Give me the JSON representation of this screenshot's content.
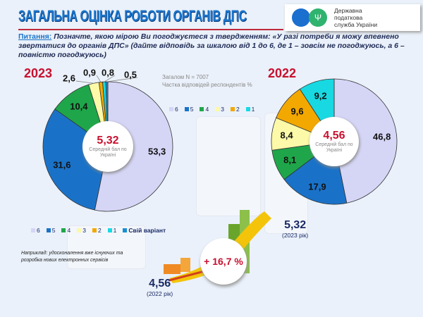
{
  "header": {
    "title": "ЗАГАЛЬНА ОЦІНКА РОБОТИ ОРГАНІВ ДПС",
    "logo_text": [
      "Державна",
      "податкова",
      "служба України"
    ]
  },
  "question": {
    "label": "Питання:",
    "text": " Позначте, якою мірою Ви погоджуєтеся з твердженням: «У разі потреби я можу впевнено звертатися до органів ДПС» (дайте відповідь за шкалою від 1 до 6, де 1 – зовсім не погоджуюсь, а 6 – повністю погоджуюсь)"
  },
  "note": {
    "total": "Загалом N = 7007",
    "share": "Частка відповідей респондентів %"
  },
  "colors": {
    "6": "#d5d5f6",
    "5": "#1a72c8",
    "4": "#1fa64a",
    "3": "#fcf9a8",
    "2": "#f3a800",
    "1": "#18d9e2",
    "own": "#1a8fd0"
  },
  "chart_data": [
    {
      "type": "pie",
      "title": "2023",
      "categories": [
        "6",
        "5",
        "4",
        "3",
        "2",
        "1",
        "Свій варіант"
      ],
      "values": [
        53.3,
        31.6,
        10.4,
        2.6,
        0.9,
        0.8,
        0.5
      ],
      "labels": [
        "53,3",
        "31,6",
        "10,4",
        "2,6",
        "0,9",
        "0,8",
        "0,5"
      ],
      "center_value": "5,32",
      "center_text": "Середній бал по Україні",
      "legend": [
        "6",
        "5",
        "4",
        "3",
        "2",
        "1",
        "Свій варіант"
      ],
      "legend_placement": "bottom"
    },
    {
      "type": "pie",
      "title": "2022",
      "categories": [
        "6",
        "5",
        "4",
        "3",
        "2",
        "1"
      ],
      "values": [
        46.8,
        17.9,
        8.1,
        8.4,
        9.6,
        9.2
      ],
      "labels": [
        "46,8",
        "17,9",
        "8,1",
        "8,4",
        "9,6",
        "9,2"
      ],
      "center_value": "4,56",
      "center_text": "Середній бал по Україні",
      "legend": [
        "6",
        "5",
        "4",
        "3",
        "2",
        "1"
      ],
      "legend_placement": "top-left"
    }
  ],
  "example": "Наприклад: удосконалення вже існуючих та розробка нових електронних сервісів",
  "comparison": {
    "v2023": "5,32",
    "y2023": "(2023 рік)",
    "v2022": "4,56",
    "y2022": "(2022 рік)",
    "growth": "+ 16,7 %"
  }
}
